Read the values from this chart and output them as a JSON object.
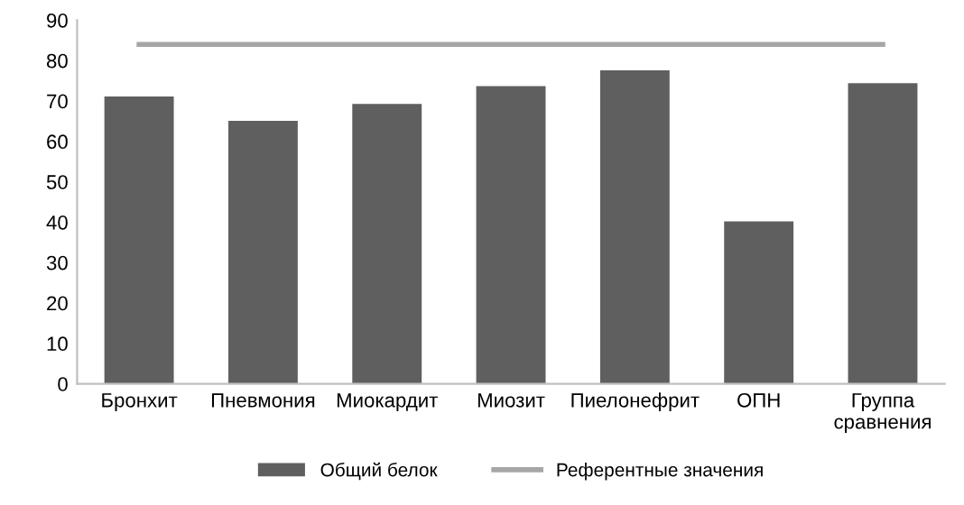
{
  "chart_data": {
    "type": "bar",
    "categories": [
      "Бронхит",
      "Пневмония",
      "Миокардит",
      "Миозит",
      "Пиелонефрит",
      "ОПН",
      "Группа сравнения"
    ],
    "series": [
      {
        "name": "Общий белок",
        "color": "#5f5f5f",
        "values": [
          71.1,
          65.1,
          69.3,
          73.7,
          77.6,
          40.2,
          74.4
        ]
      },
      {
        "name": "Референтные значения",
        "type": "line",
        "color": "#a6a6a6",
        "marker": "none",
        "line_style": "solid",
        "values": [
          84,
          84,
          84,
          84,
          84,
          84,
          84
        ]
      }
    ],
    "ylim": [
      0,
      90
    ],
    "yticks": [
      0,
      10,
      20,
      30,
      40,
      50,
      60,
      70,
      80,
      90
    ],
    "grid": false,
    "legend": "bottom"
  }
}
